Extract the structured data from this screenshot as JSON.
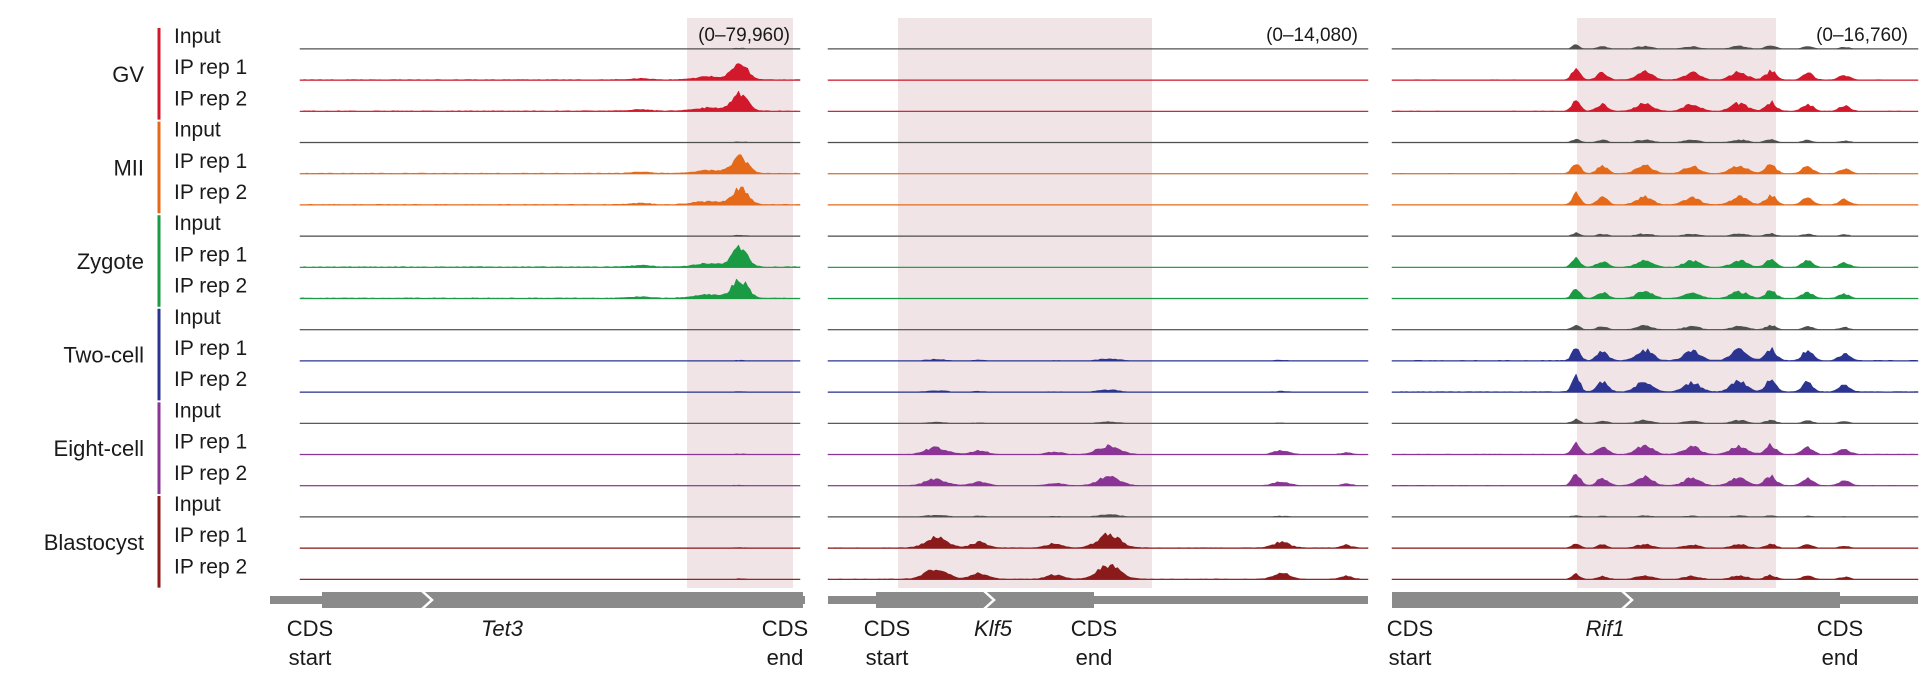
{
  "chart_data": {
    "type": "genome-browser-tracks",
    "track_types": [
      "Input",
      "IP rep 1",
      "IP rep 2"
    ],
    "stages": [
      {
        "name": "GV",
        "color": "#d1192b"
      },
      {
        "name": "MII",
        "color": "#e46a1a"
      },
      {
        "name": "Zygote",
        "color": "#1a9a43"
      },
      {
        "name": "Two-cell",
        "color": "#2b3490"
      },
      {
        "name": "Eight-cell",
        "color": "#8a3596"
      },
      {
        "name": "Blastocyst",
        "color": "#8b1a1a"
      }
    ],
    "input_color": "#505050",
    "highlight_color": "#f1e4e6",
    "loci": [
      {
        "gene": "Tet3",
        "range_label": "(0–79,960)",
        "y_max": 79960,
        "cds_start_label": [
          "CDS",
          "start"
        ],
        "cds_end_label": [
          "CDS",
          "end"
        ],
        "peaks": [
          {
            "pos": 0.88,
            "width": 0.03,
            "height": 0.62
          },
          {
            "pos": 0.82,
            "width": 0.06,
            "height": 0.12
          },
          {
            "pos": 0.68,
            "width": 0.04,
            "height": 0.05
          }
        ],
        "stage_scale": [
          1.0,
          1.0,
          1.1,
          0.05,
          0.05,
          0.05
        ],
        "input_scale": 0.06
      },
      {
        "gene": "Klf5",
        "range_label": "(0–14,080)",
        "y_max": 14080,
        "cds_start_label": [
          "CDS",
          "start"
        ],
        "cds_end_label": [
          "CDS",
          "end"
        ],
        "peaks": [
          {
            "pos": 0.52,
            "width": 0.04,
            "height": 0.6
          },
          {
            "pos": 0.2,
            "width": 0.04,
            "height": 0.45
          },
          {
            "pos": 0.28,
            "width": 0.03,
            "height": 0.25
          },
          {
            "pos": 0.42,
            "width": 0.03,
            "height": 0.18
          },
          {
            "pos": 0.84,
            "width": 0.03,
            "height": 0.25
          },
          {
            "pos": 0.96,
            "width": 0.02,
            "height": 0.12
          }
        ],
        "stage_scale": [
          0.0,
          0.0,
          0.0,
          0.15,
          0.55,
          0.85
        ],
        "input_scale": 0.18
      },
      {
        "gene": "Rif1",
        "range_label": "(0–16,760)",
        "y_max": 16760,
        "cds_start_label": [
          "CDS",
          "start"
        ],
        "cds_end_label": [
          "CDS",
          "end"
        ],
        "peaks": [
          {
            "pos": 0.35,
            "width": 0.015,
            "height": 0.55
          },
          {
            "pos": 0.4,
            "width": 0.02,
            "height": 0.35
          },
          {
            "pos": 0.48,
            "width": 0.03,
            "height": 0.4
          },
          {
            "pos": 0.57,
            "width": 0.03,
            "height": 0.35
          },
          {
            "pos": 0.66,
            "width": 0.03,
            "height": 0.4
          },
          {
            "pos": 0.72,
            "width": 0.02,
            "height": 0.45
          },
          {
            "pos": 0.79,
            "width": 0.02,
            "height": 0.35
          },
          {
            "pos": 0.86,
            "width": 0.02,
            "height": 0.25
          }
        ],
        "stage_scale": [
          0.75,
          0.75,
          0.65,
          1.0,
          0.8,
          0.35
        ],
        "input_scale": 0.35
      }
    ]
  }
}
